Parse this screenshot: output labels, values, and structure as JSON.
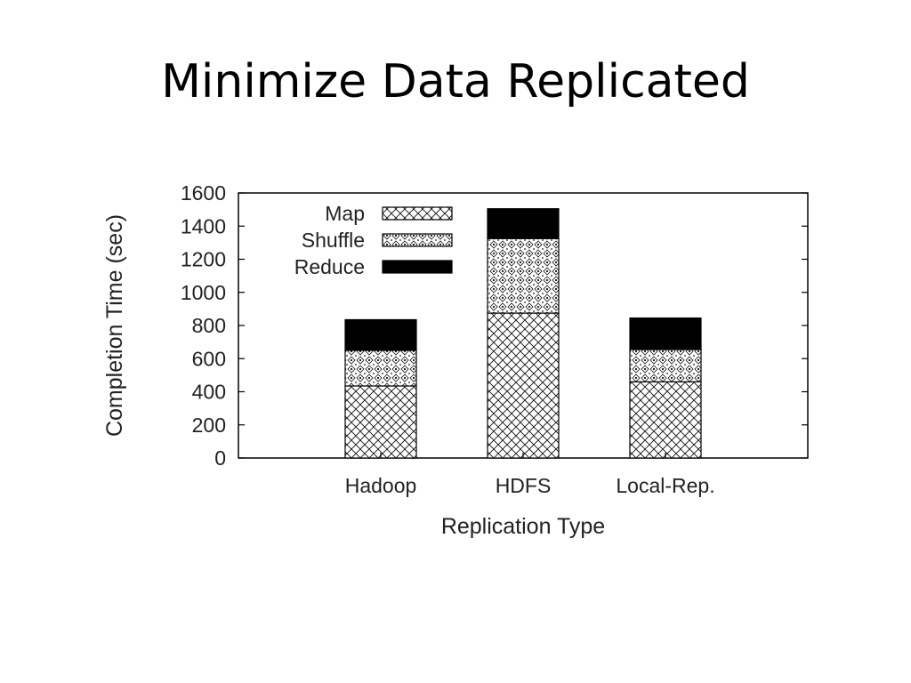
{
  "slide": {
    "title": "Minimize Data Replicated"
  },
  "chart_data": {
    "type": "bar",
    "stacked": true,
    "categories": [
      "Hadoop",
      "HDFS",
      "Local-Rep."
    ],
    "series": [
      {
        "name": "Map",
        "values": [
          435,
          875,
          460
        ],
        "pattern": "crosshatch"
      },
      {
        "name": "Shuffle",
        "values": [
          215,
          450,
          195
        ],
        "pattern": "dotted-diamond"
      },
      {
        "name": "Reduce",
        "values": [
          185,
          180,
          190
        ],
        "color": "#000000"
      }
    ],
    "xlabel": "Replication Type",
    "ylabel": "Completion Time (sec)",
    "ylim": [
      0,
      1600
    ],
    "yticks": [
      0,
      200,
      400,
      600,
      800,
      1000,
      1200,
      1400,
      1600
    ],
    "legend_position": "top-left",
    "grid": false
  }
}
